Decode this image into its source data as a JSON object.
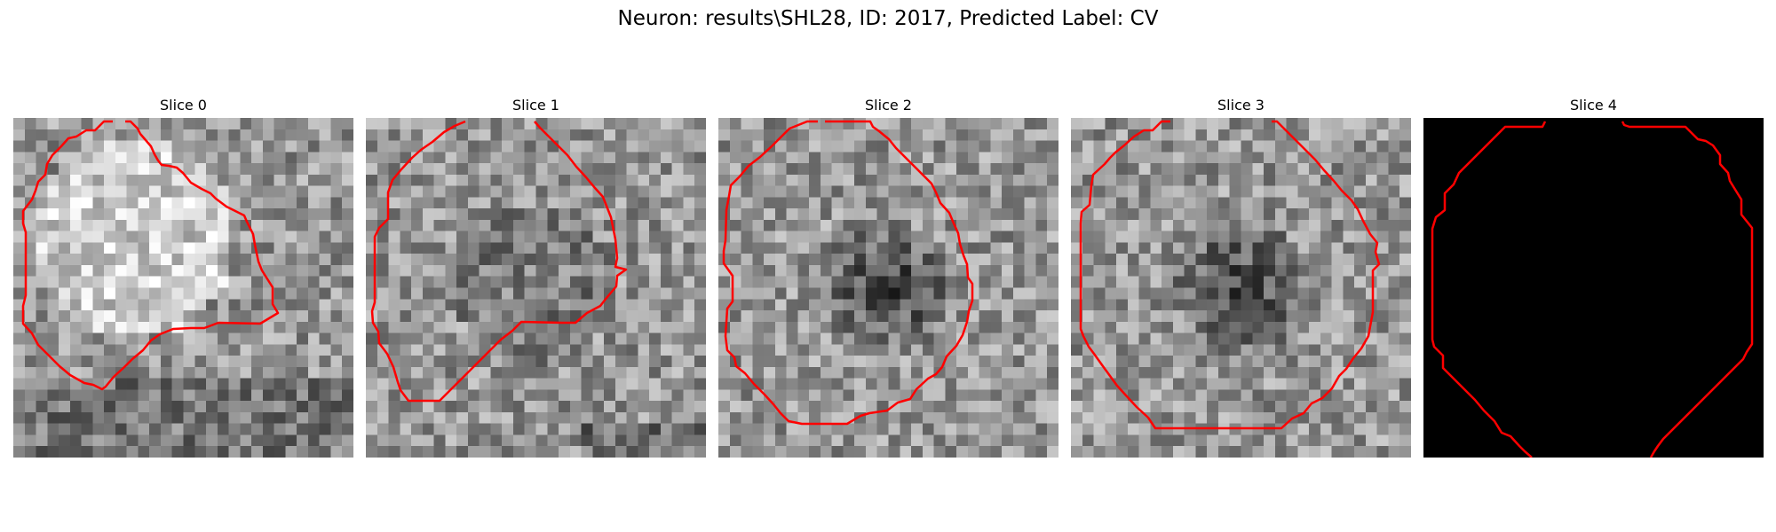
{
  "figure": {
    "title": "Neuron: results\\SHL28, ID: 2017, Predicted Label: CV",
    "contour_color": "#ff0000",
    "colormap": "gray"
  },
  "panels": [
    {
      "title": "Slice 0",
      "image": "grayscale-noise-patch",
      "contour": "irregular-red-outline"
    },
    {
      "title": "Slice 1",
      "image": "grayscale-noise-patch",
      "contour": "irregular-red-outline"
    },
    {
      "title": "Slice 2",
      "image": "grayscale-noise-patch-dark-center",
      "contour": "octagonal-red-outline"
    },
    {
      "title": "Slice 3",
      "image": "grayscale-noise-patch-dark-center",
      "contour": "octagonal-red-outline"
    },
    {
      "title": "Slice 4",
      "image": "black-patch",
      "contour": "octagonal-red-outline"
    }
  ]
}
